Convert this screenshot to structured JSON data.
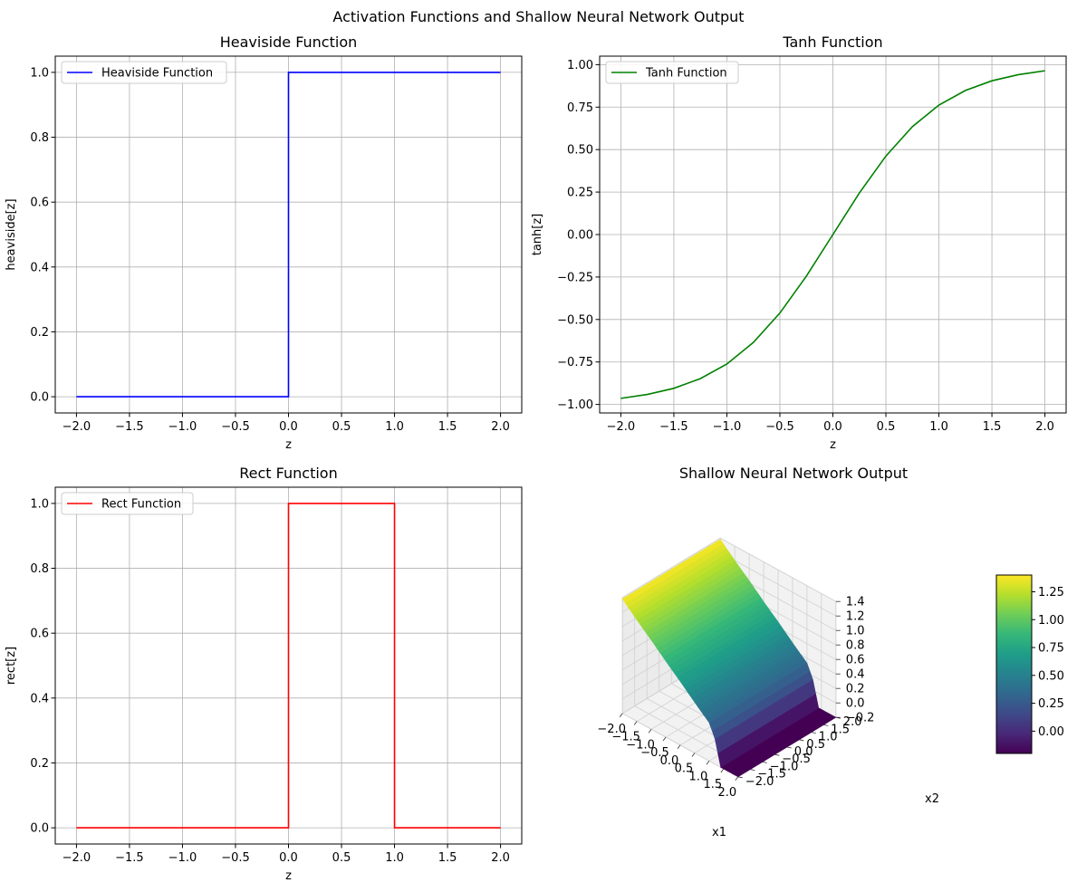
{
  "figure": {
    "suptitle": "Activation Functions and Shallow Neural Network Output"
  },
  "chart_data": [
    {
      "type": "line",
      "title": "Heaviside Function",
      "xlabel": "z",
      "ylabel": "heaviside[z]",
      "xlim": [
        -2.2,
        2.2
      ],
      "ylim": [
        -0.05,
        1.05
      ],
      "xticks": [
        -2.0,
        -1.5,
        -1.0,
        -0.5,
        0.0,
        0.5,
        1.0,
        1.5,
        2.0
      ],
      "xtick_labels": [
        "−2.0",
        "−1.5",
        "−1.0",
        "−0.5",
        "0.0",
        "0.5",
        "1.0",
        "1.5",
        "2.0"
      ],
      "yticks": [
        0.0,
        0.2,
        0.4,
        0.6,
        0.8,
        1.0
      ],
      "ytick_labels": [
        "0.0",
        "0.2",
        "0.4",
        "0.6",
        "0.8",
        "1.0"
      ],
      "grid": true,
      "legend": "upper-left",
      "series": [
        {
          "name": "Heaviside Function",
          "color": "#0000ff",
          "x": [
            -2.0,
            0.0,
            0.0,
            2.0
          ],
          "y": [
            0.0,
            0.0,
            1.0,
            1.0
          ]
        }
      ]
    },
    {
      "type": "line",
      "title": "Tanh Function",
      "xlabel": "z",
      "ylabel": "tanh[z]",
      "xlim": [
        -2.2,
        2.2
      ],
      "ylim": [
        -1.05,
        1.05
      ],
      "xticks": [
        -2.0,
        -1.5,
        -1.0,
        -0.5,
        0.0,
        0.5,
        1.0,
        1.5,
        2.0
      ],
      "xtick_labels": [
        "−2.0",
        "−1.5",
        "−1.0",
        "−0.5",
        "0.0",
        "0.5",
        "1.0",
        "1.5",
        "2.0"
      ],
      "yticks": [
        -1.0,
        -0.75,
        -0.5,
        -0.25,
        0.0,
        0.25,
        0.5,
        0.75,
        1.0
      ],
      "ytick_labels": [
        "−1.00",
        "−0.75",
        "−0.50",
        "−0.25",
        "0.00",
        "0.25",
        "0.50",
        "0.75",
        "1.00"
      ],
      "grid": true,
      "legend": "upper-left",
      "series": [
        {
          "name": "Tanh Function",
          "color": "#008000",
          "x": [
            -2.0,
            -1.75,
            -1.5,
            -1.25,
            -1.0,
            -0.75,
            -0.5,
            -0.25,
            0.0,
            0.25,
            0.5,
            0.75,
            1.0,
            1.25,
            1.5,
            1.75,
            2.0
          ],
          "y": [
            -0.964,
            -0.941,
            -0.905,
            -0.848,
            -0.762,
            -0.635,
            -0.462,
            -0.245,
            0.0,
            0.245,
            0.462,
            0.635,
            0.762,
            0.848,
            0.905,
            0.941,
            0.964
          ]
        }
      ]
    },
    {
      "type": "line",
      "title": "Rect Function",
      "xlabel": "z",
      "ylabel": "rect[z]",
      "xlim": [
        -2.2,
        2.2
      ],
      "ylim": [
        -0.05,
        1.05
      ],
      "xticks": [
        -2.0,
        -1.5,
        -1.0,
        -0.5,
        0.0,
        0.5,
        1.0,
        1.5,
        2.0
      ],
      "xtick_labels": [
        "−2.0",
        "−1.5",
        "−1.0",
        "−0.5",
        "0.0",
        "0.5",
        "1.0",
        "1.5",
        "2.0"
      ],
      "yticks": [
        0.0,
        0.2,
        0.4,
        0.6,
        0.8,
        1.0
      ],
      "ytick_labels": [
        "0.0",
        "0.2",
        "0.4",
        "0.6",
        "0.8",
        "1.0"
      ],
      "grid": true,
      "legend": "upper-left",
      "series": [
        {
          "name": "Rect Function",
          "color": "#ff0000",
          "x": [
            -2.0,
            0.0,
            0.0,
            1.0,
            1.0,
            2.0
          ],
          "y": [
            0.0,
            0.0,
            1.0,
            1.0,
            0.0,
            0.0
          ]
        }
      ]
    },
    {
      "type": "surface3d",
      "title": "Shallow Neural Network Output",
      "xlabel": "x1",
      "ylabel": "x2",
      "xlim": [
        -2.0,
        2.0
      ],
      "ylim": [
        -2.0,
        2.0
      ],
      "zlim": [
        -0.2,
        1.4
      ],
      "xticks": [
        -2.0,
        -1.5,
        -1.0,
        -0.5,
        0.0,
        0.5,
        1.0,
        1.5,
        2.0
      ],
      "xtick_labels": [
        "−2.0",
        "−1.5",
        "−1.0",
        "−0.5",
        "0.0",
        "0.5",
        "1.0",
        "1.5",
        "2.0"
      ],
      "yticks": [
        -2.0,
        -1.5,
        -1.0,
        -0.5,
        0.0,
        0.5,
        1.0,
        1.5,
        2.0
      ],
      "ytick_labels": [
        "−2.0",
        "−1.5",
        "−1.0",
        "−0.5",
        "0.0",
        "0.5",
        "1.0",
        "1.5",
        "2.0"
      ],
      "zticks": [
        -0.2,
        0.0,
        0.2,
        0.4,
        0.6,
        0.8,
        1.0,
        1.2,
        1.4
      ],
      "ztick_labels": [
        "−0.2",
        "0.0",
        "0.2",
        "0.4",
        "0.6",
        "0.8",
        "1.0",
        "1.2",
        "1.4"
      ],
      "grid": true,
      "colormap": "viridis",
      "surface_x1": [
        -2.0,
        -1.5,
        -1.0,
        -0.5,
        0.0,
        0.5,
        1.0,
        1.2,
        1.4,
        1.6,
        2.0
      ],
      "surface_z": [
        1.38,
        1.2,
        1.03,
        0.85,
        0.68,
        0.5,
        0.33,
        0.15,
        -0.2,
        -0.2,
        -0.2
      ],
      "colorbar": {
        "range": [
          -0.2,
          1.4
        ],
        "ticks": [
          0.0,
          0.25,
          0.5,
          0.75,
          1.0,
          1.25
        ],
        "tick_labels": [
          "0.00",
          "0.25",
          "0.50",
          "0.75",
          "1.00",
          "1.25"
        ]
      }
    }
  ]
}
